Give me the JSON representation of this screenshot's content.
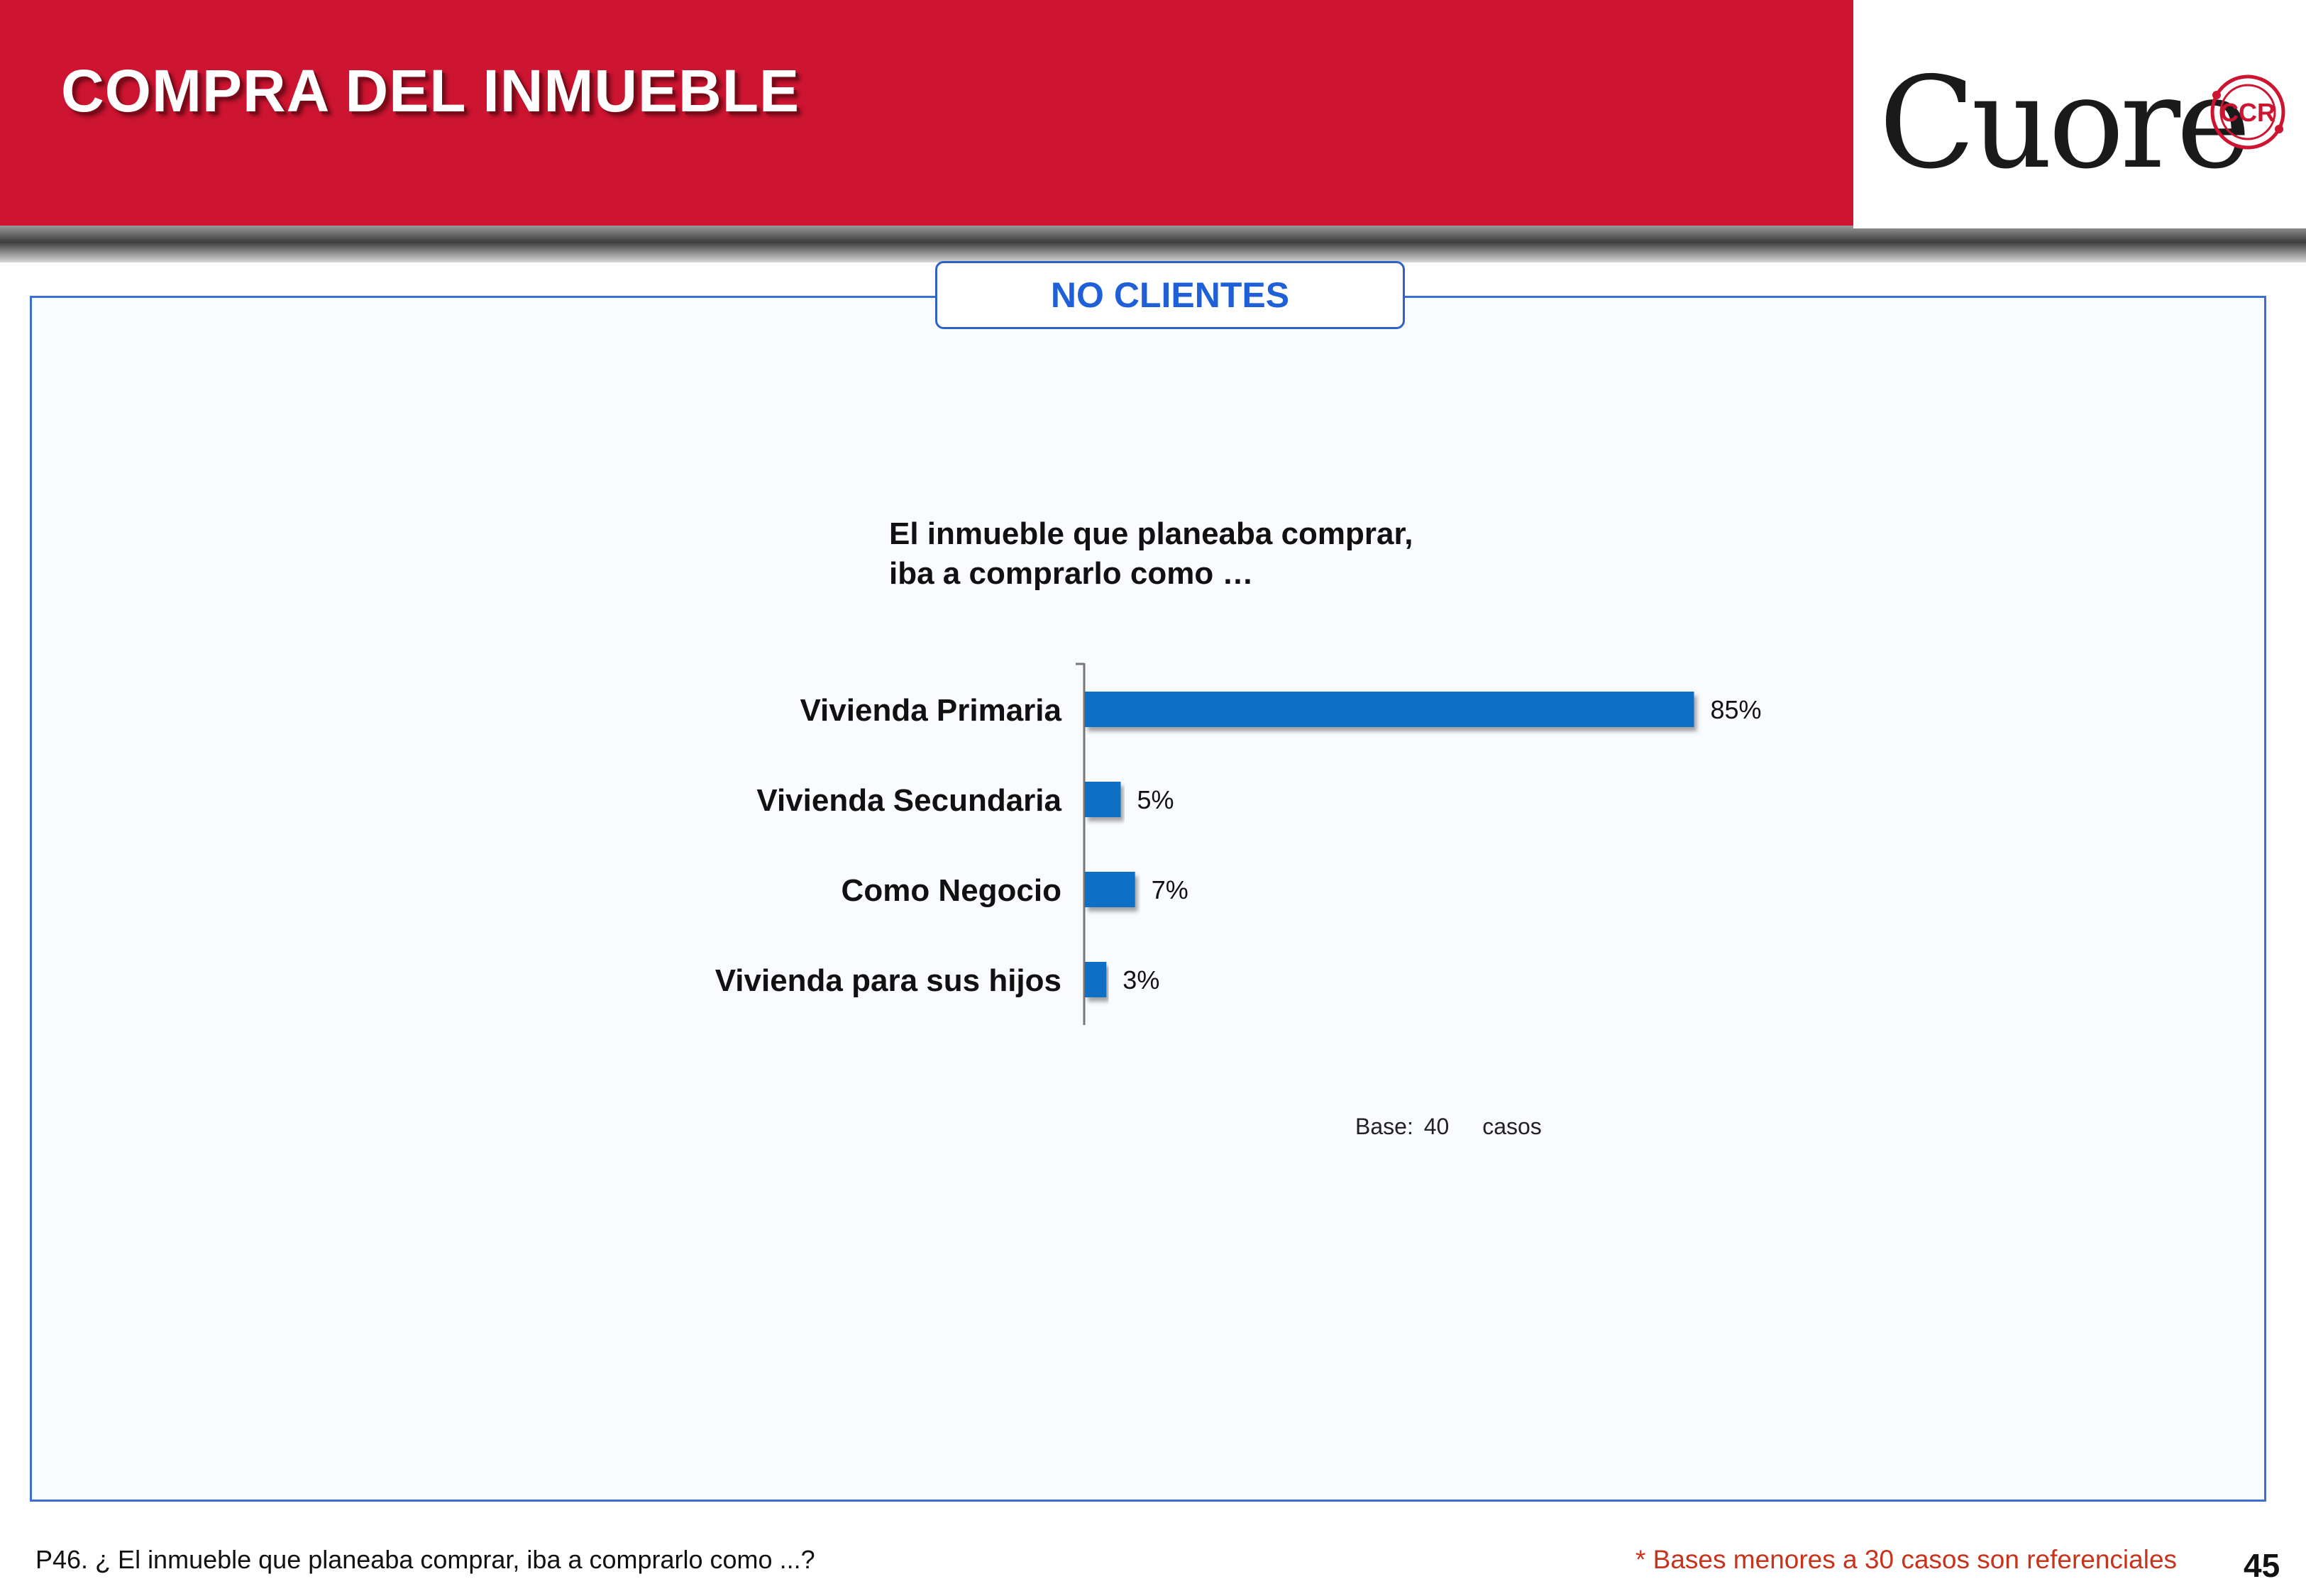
{
  "header": {
    "title": "COMPRA DEL INMUEBLE",
    "logo_text": "Cuore",
    "logo_seal_text": "CCR",
    "accent_color": "#cd1430"
  },
  "segment": {
    "label": "NO CLIENTES"
  },
  "chart_data": {
    "type": "bar",
    "orientation": "horizontal",
    "title_lines": [
      "El inmueble que planeaba comprar,",
      "iba a comprarlo como …"
    ],
    "categories": [
      "Vivienda Primaria",
      "Vivienda Secundaria",
      "Como Negocio",
      "Vivienda para sus hijos"
    ],
    "values": [
      85,
      5,
      7,
      3
    ],
    "value_labels": [
      "85%",
      "5%",
      "7%",
      "3%"
    ],
    "unit": "%",
    "xlim": [
      0,
      100
    ],
    "bar_color": "#0b6fc5",
    "grid": false,
    "legend": "none"
  },
  "base": {
    "label": "Base:",
    "count": "40",
    "unit": "casos"
  },
  "footer": {
    "question": "P46. ¿ El inmueble que planeaba comprar, iba a comprarlo como ...?",
    "note": "* Bases menores a 30 casos son referenciales",
    "page_number": "45"
  }
}
